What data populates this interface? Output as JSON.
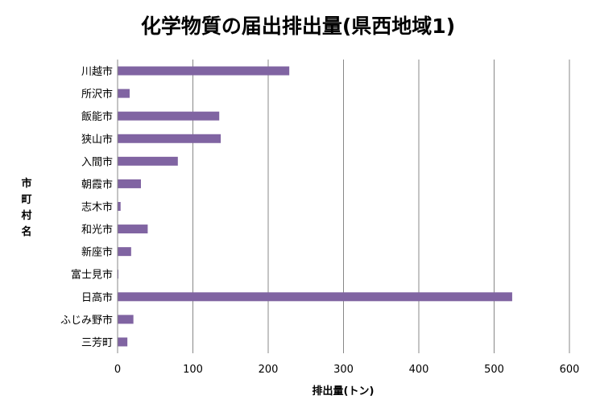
{
  "chart_data": {
    "type": "bar",
    "orientation": "horizontal",
    "title": "化学物質の届出排出量(県西地域1)",
    "xlabel": "排出量(トン)",
    "ylabel": "市町村名",
    "categories": [
      "川越市",
      "所沢市",
      "飯能市",
      "狭山市",
      "入間市",
      "朝霞市",
      "志木市",
      "和光市",
      "新座市",
      "富士見市",
      "日高市",
      "ふじみ野市",
      "三芳町"
    ],
    "values": [
      228,
      16,
      135,
      137,
      80,
      31,
      4,
      40,
      18,
      1,
      524,
      21,
      13
    ],
    "xlim": [
      0,
      600
    ],
    "xticks": [
      "0",
      "100",
      "200",
      "300",
      "400",
      "500",
      "600"
    ],
    "grid": true,
    "bar_color": "#8064a2"
  }
}
